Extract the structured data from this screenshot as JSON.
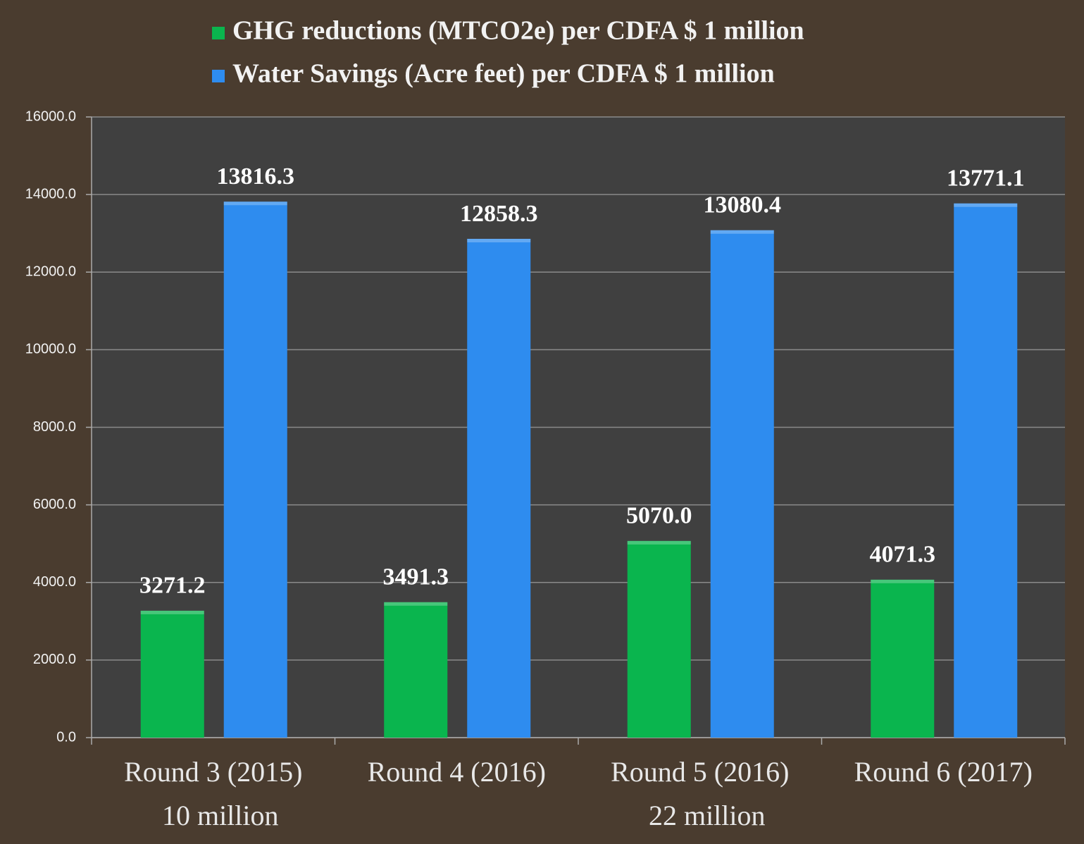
{
  "chart_data": {
    "type": "bar",
    "categories": [
      "Round 3 (2015)",
      "Round 4 (2016)",
      "Round 5 (2016)",
      "Round 6 (2017)"
    ],
    "series": [
      {
        "name": "GHG reductions (MTCO2e) per CDFA $ 1 million",
        "color": "#0ab54e",
        "values": [
          3271.2,
          3491.3,
          5070.0,
          4071.3
        ],
        "value_labels": [
          "3271.2",
          "3491.3",
          "5070.0",
          "4071.3"
        ]
      },
      {
        "name": "Water Savings (Acre feet) per CDFA $ 1 million",
        "color": "#2e8cef",
        "values": [
          13816.3,
          12858.3,
          13080.4,
          13771.1
        ],
        "value_labels": [
          "13816.3",
          "12858.3",
          "13080.4",
          "13771.1"
        ]
      }
    ],
    "annotations": [
      "10 million",
      "22 million"
    ],
    "ylim": [
      0,
      16000
    ],
    "yticks": [
      {
        "value": 0,
        "label": "0.0"
      },
      {
        "value": 2000,
        "label": "2000.0"
      },
      {
        "value": 4000,
        "label": "4000.0"
      },
      {
        "value": 6000,
        "label": "6000.0"
      },
      {
        "value": 8000,
        "label": "8000.0"
      },
      {
        "value": 10000,
        "label": "10000.0"
      },
      {
        "value": 12000,
        "label": "12000.0"
      },
      {
        "value": 14000,
        "label": "14000.0"
      },
      {
        "value": 16000,
        "label": "16000.0"
      }
    ],
    "grid": true,
    "legend": "top"
  }
}
